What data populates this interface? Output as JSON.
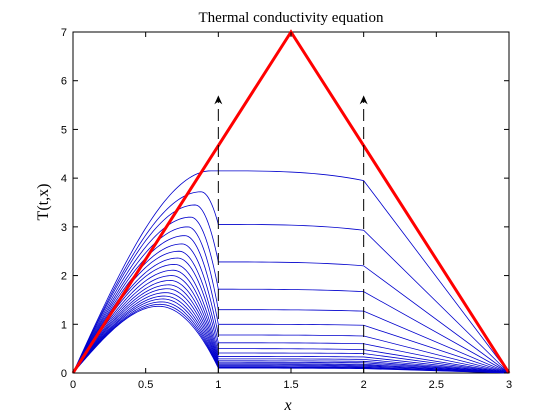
{
  "chart_data": {
    "type": "line",
    "title": "Thermal conductivity equation",
    "xlabel": "x",
    "ylabel": "T(t,x)",
    "xlim": [
      0,
      3
    ],
    "ylim": [
      0,
      7
    ],
    "x_ticks": [
      "0",
      "0.5",
      "1",
      "1.5",
      "2",
      "2.5",
      "3"
    ],
    "y_ticks": [
      "0",
      "1",
      "2",
      "3",
      "4",
      "5",
      "6",
      "7"
    ],
    "grid": false,
    "legend": "none",
    "colors": {
      "initial": "#ff0000",
      "evolution": "#0000cc",
      "arrows": "#000000",
      "axes": "#000000"
    },
    "initial_condition": {
      "x": [
        0,
        1.5,
        3
      ],
      "y": [
        0,
        7,
        0
      ]
    },
    "evolution_curves": [
      {
        "peak_x": 0.95,
        "peak": 4.15,
        "plateau_start": 4.15,
        "plateau_end": 3.95
      },
      {
        "peak_x": 0.88,
        "peak": 3.72,
        "plateau_start": 3.05,
        "plateau_end": 2.93
      },
      {
        "peak_x": 0.84,
        "peak": 3.45,
        "plateau_start": 2.28,
        "plateau_end": 2.2
      },
      {
        "peak_x": 0.81,
        "peak": 3.2,
        "plateau_start": 1.72,
        "plateau_end": 1.67
      },
      {
        "peak_x": 0.79,
        "peak": 3.0,
        "plateau_start": 1.3,
        "plateau_end": 1.27
      },
      {
        "peak_x": 0.77,
        "peak": 2.82,
        "plateau_start": 1.0,
        "plateau_end": 0.98
      },
      {
        "peak_x": 0.75,
        "peak": 2.65,
        "plateau_start": 0.78,
        "plateau_end": 0.76
      },
      {
        "peak_x": 0.73,
        "peak": 2.5,
        "plateau_start": 0.62,
        "plateau_end": 0.6
      },
      {
        "peak_x": 0.72,
        "peak": 2.36,
        "plateau_start": 0.5,
        "plateau_end": 0.48
      },
      {
        "peak_x": 0.7,
        "peak": 2.23,
        "plateau_start": 0.41,
        "plateau_end": 0.4
      },
      {
        "peak_x": 0.69,
        "peak": 2.11,
        "plateau_start": 0.34,
        "plateau_end": 0.33
      },
      {
        "peak_x": 0.68,
        "peak": 2.0,
        "plateau_start": 0.29,
        "plateau_end": 0.28
      },
      {
        "peak_x": 0.67,
        "peak": 1.9,
        "plateau_start": 0.25,
        "plateau_end": 0.24
      },
      {
        "peak_x": 0.66,
        "peak": 1.81,
        "plateau_start": 0.22,
        "plateau_end": 0.21
      },
      {
        "peak_x": 0.65,
        "peak": 1.73,
        "plateau_start": 0.19,
        "plateau_end": 0.18
      },
      {
        "peak_x": 0.64,
        "peak": 1.65,
        "plateau_start": 0.17,
        "plateau_end": 0.16
      },
      {
        "peak_x": 0.63,
        "peak": 1.58,
        "plateau_start": 0.15,
        "plateau_end": 0.14
      },
      {
        "peak_x": 0.62,
        "peak": 1.52,
        "plateau_start": 0.13,
        "plateau_end": 0.12
      },
      {
        "peak_x": 0.61,
        "peak": 1.46,
        "plateau_start": 0.12,
        "plateau_end": 0.11
      },
      {
        "peak_x": 0.6,
        "peak": 1.41,
        "plateau_start": 0.11,
        "plateau_end": 0.1
      },
      {
        "peak_x": 0.59,
        "peak": 1.37,
        "plateau_start": 0.1,
        "plateau_end": 0.09
      }
    ],
    "boundary_arrows": [
      {
        "x": 1,
        "y_from": 0,
        "y_to": 5.7
      },
      {
        "x": 2,
        "y_from": 0,
        "y_to": 5.7
      }
    ]
  }
}
